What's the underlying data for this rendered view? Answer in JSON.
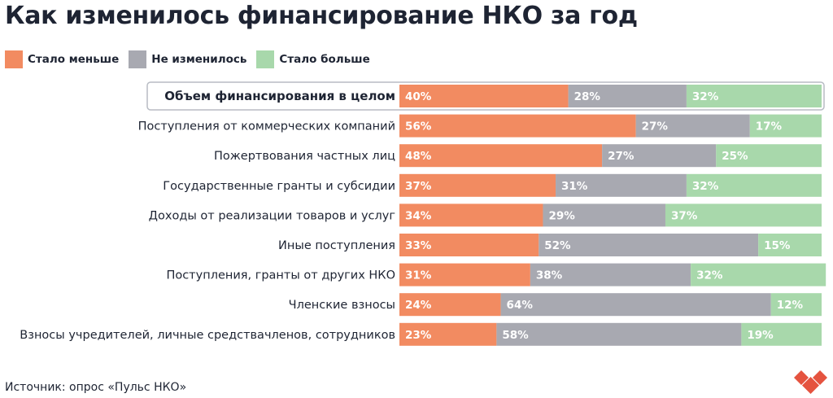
{
  "title": "Как изменилось финансирование НКО за год",
  "source": "Источник: опрос «Пульс НКО»",
  "colors": {
    "less": "#f28b61",
    "same": "#a8a9b1",
    "more": "#a8d8ab",
    "text": "#1e2433",
    "logo": "#e5533f"
  },
  "chart_data": {
    "type": "bar",
    "orientation": "horizontal",
    "stacked": true,
    "percent_stacked": true,
    "title": "Как изменилось финансирование НКО за год",
    "categories": [
      "Объем финансирования в целом",
      "Поступления от коммерческих компаний",
      "Пожертвования частных лиц",
      "Государственные гранты и субсидии",
      "Доходы от реализации товаров и услуг",
      "Иные поступления",
      "Поступления, гранты от других НКО",
      "Членские взносы",
      "Взносы учредителей, личные средствачленов, сотрудников"
    ],
    "highlighted_category": 0,
    "series": [
      {
        "name": "Стало меньше",
        "color": "#f28b61",
        "values": [
          40,
          56,
          48,
          37,
          34,
          33,
          31,
          24,
          23
        ]
      },
      {
        "name": "Не изменилось",
        "color": "#a8a9b1",
        "values": [
          28,
          27,
          27,
          31,
          29,
          52,
          38,
          64,
          58
        ]
      },
      {
        "name": "Стало больше",
        "color": "#a8d8ab",
        "values": [
          32,
          17,
          25,
          32,
          37,
          15,
          32,
          12,
          19
        ]
      }
    ],
    "value_suffix": "%",
    "legend_position": "top-left",
    "xlim": [
      0,
      100
    ],
    "grid": false
  }
}
